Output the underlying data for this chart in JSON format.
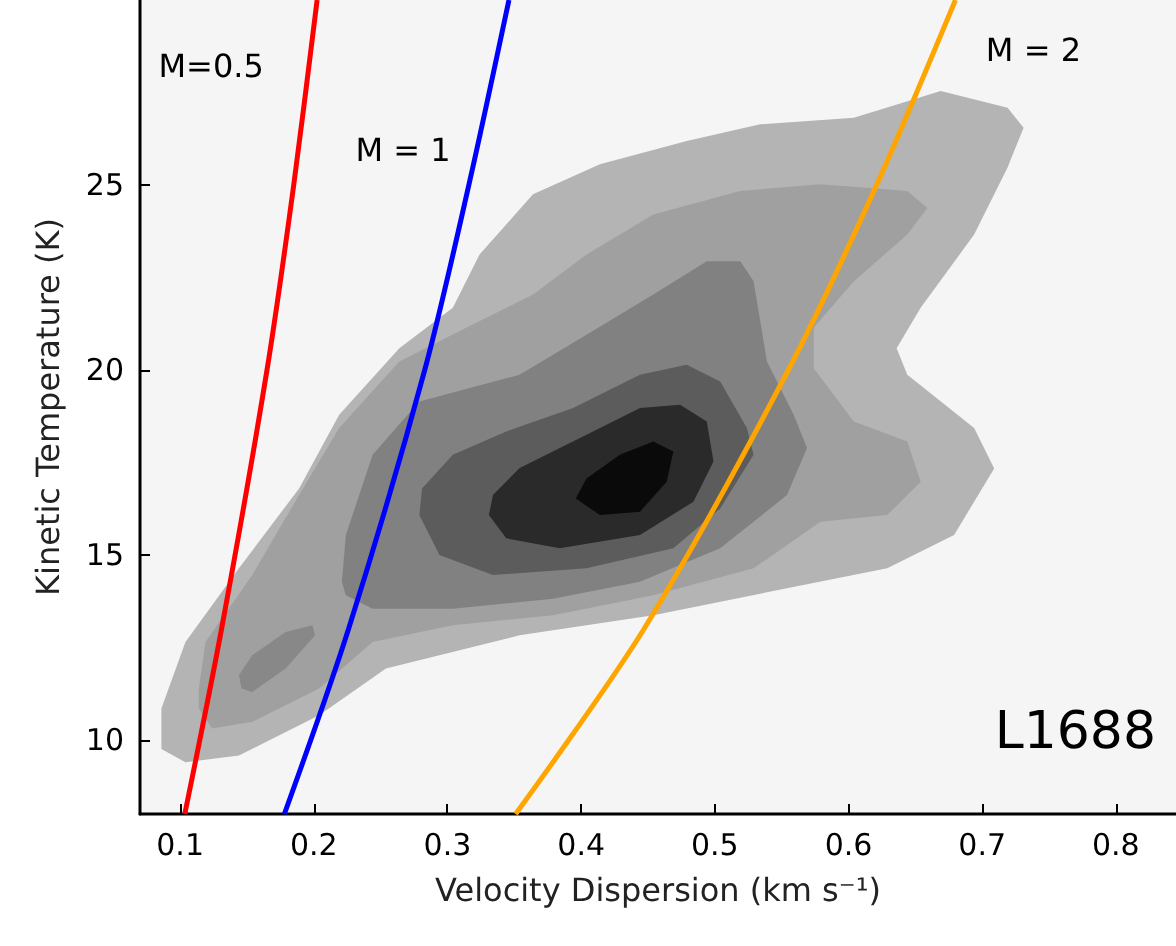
{
  "chart_data": {
    "type": "line",
    "xlabel": "Velocity Dispersion (km s⁻¹)",
    "ylabel": "Kinetic Temperature (K)",
    "xlim": [
      0.07,
      0.845
    ],
    "xticks": [
      0.1,
      0.2,
      0.3,
      0.4,
      0.5,
      0.6,
      0.7,
      0.8
    ],
    "ylim": [
      8,
      30
    ],
    "yticks": [
      10,
      15,
      20,
      25
    ],
    "grid": false,
    "marker": "none",
    "series": [
      {
        "type": "area",
        "color": "#b4b4b4",
        "x": [
          0.086,
          0.104,
          0.144,
          0.204,
          0.254,
          0.354,
          0.454,
          0.554,
          0.629,
          0.679,
          0.709,
          0.694,
          0.644,
          0.636,
          0.654,
          0.694,
          0.719,
          0.731,
          0.719,
          0.669,
          0.604,
          0.534,
          0.479,
          0.414,
          0.364,
          0.324,
          0.304,
          0.264,
          0.219,
          0.189,
          0.144,
          0.104,
          0.086
        ],
        "values": [
          9.76,
          9.4,
          9.58,
          10.67,
          11.93,
          12.83,
          13.37,
          14.1,
          14.64,
          15.54,
          17.34,
          18.43,
          19.87,
          20.59,
          21.68,
          23.66,
          25.47,
          26.55,
          27.09,
          27.54,
          26.82,
          26.64,
          26.19,
          25.56,
          24.75,
          23.12,
          21.68,
          20.59,
          18.79,
          16.8,
          14.64,
          12.65,
          10.85
        ]
      },
      {
        "type": "area",
        "color": "#a0a0a0",
        "x": [
          0.114,
          0.124,
          0.154,
          0.204,
          0.244,
          0.304,
          0.379,
          0.454,
          0.529,
          0.579,
          0.629,
          0.654,
          0.644,
          0.604,
          0.574,
          0.574,
          0.604,
          0.644,
          0.659,
          0.644,
          0.579,
          0.519,
          0.454,
          0.404,
          0.364,
          0.314,
          0.264,
          0.219,
          0.189,
          0.154,
          0.119,
          0.114
        ],
        "values": [
          10.85,
          10.31,
          10.49,
          11.39,
          12.65,
          13.1,
          13.37,
          13.91,
          14.64,
          15.9,
          16.08,
          16.98,
          18.07,
          18.61,
          20.05,
          21.14,
          22.4,
          23.66,
          24.38,
          24.84,
          25.02,
          24.84,
          24.2,
          23.12,
          22.04,
          21.14,
          20.23,
          18.43,
          16.62,
          14.46,
          12.65,
          11.39
        ]
      },
      {
        "type": "area",
        "color": "#818181",
        "x": [
          0.224,
          0.244,
          0.304,
          0.379,
          0.444,
          0.504,
          0.554,
          0.569,
          0.559,
          0.539,
          0.529,
          0.519,
          0.494,
          0.454,
          0.404,
          0.354,
          0.279,
          0.244,
          0.224,
          0.221
        ],
        "values": [
          13.91,
          13.55,
          13.55,
          13.82,
          14.28,
          15.18,
          16.62,
          17.89,
          18.79,
          20.23,
          22.4,
          22.94,
          22.94,
          22.04,
          20.95,
          19.87,
          19.15,
          17.71,
          15.54,
          14.28
        ]
      },
      {
        "type": "area",
        "color": "#888888",
        "x": [
          0.146,
          0.154,
          0.179,
          0.201,
          0.199,
          0.179,
          0.154,
          0.144
        ],
        "values": [
          11.39,
          11.3,
          11.93,
          12.83,
          13.1,
          12.92,
          12.29,
          11.75
        ]
      },
      {
        "type": "area",
        "color": "#5c5c5c",
        "x": [
          0.279,
          0.294,
          0.334,
          0.404,
          0.469,
          0.504,
          0.529,
          0.524,
          0.504,
          0.479,
          0.444,
          0.394,
          0.344,
          0.304,
          0.281
        ],
        "values": [
          16.08,
          15.0,
          14.46,
          14.64,
          15.18,
          16.26,
          17.71,
          18.43,
          19.69,
          20.14,
          19.87,
          18.97,
          18.34,
          17.71,
          16.8
        ]
      },
      {
        "type": "area",
        "color": "#2a2a2a",
        "x": [
          0.331,
          0.344,
          0.384,
          0.444,
          0.484,
          0.499,
          0.494,
          0.474,
          0.444,
          0.404,
          0.354,
          0.334
        ],
        "values": [
          16.08,
          15.45,
          15.18,
          15.54,
          16.44,
          17.53,
          18.61,
          19.06,
          18.97,
          18.25,
          17.35,
          16.62
        ]
      },
      {
        "type": "area",
        "color": "#0a0a0a",
        "x": [
          0.396,
          0.414,
          0.444,
          0.464,
          0.469,
          0.454,
          0.429,
          0.404
        ],
        "values": [
          16.53,
          16.08,
          16.17,
          16.98,
          17.8,
          18.07,
          17.71,
          17.07
        ]
      },
      {
        "name": "M=0.5",
        "color": "#ff0000",
        "x": [
          0.1035,
          0.131,
          0.165,
          0.185,
          0.2025
        ],
        "values": [
          8,
          13,
          20,
          25,
          30
        ]
      },
      {
        "name": "M = 1",
        "color": "#0000ff",
        "x": [
          0.178,
          0.226,
          0.283,
          0.316,
          0.346
        ],
        "values": [
          8,
          13,
          20,
          25,
          30
        ]
      },
      {
        "name": "M = 2",
        "color": "#ffa500",
        "x": [
          0.351,
          0.447,
          0.555,
          0.621,
          0.68
        ],
        "values": [
          8,
          13,
          20,
          25,
          30
        ]
      }
    ],
    "annotations": [
      "L1688"
    ]
  }
}
